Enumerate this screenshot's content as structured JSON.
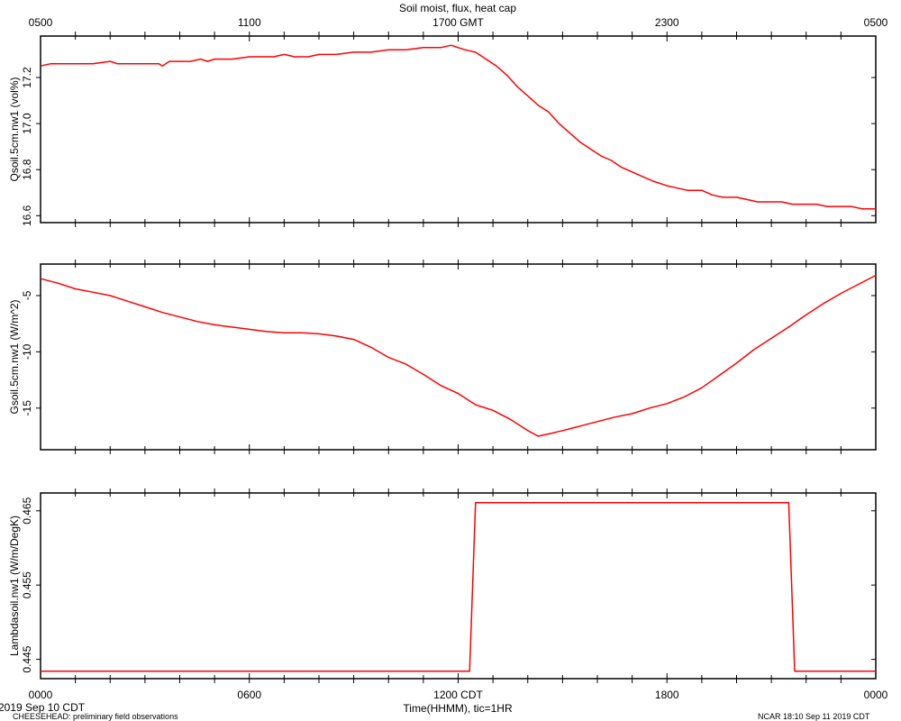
{
  "figure": {
    "title": "Soil moist, flux, heat cap",
    "top_axis_ticks": [
      "0500",
      "1100",
      "1700 GMT",
      "2300",
      "0500"
    ],
    "bottom_axis_ticks": [
      "0000",
      "0600",
      "1200 CDT",
      "1800",
      "0000"
    ],
    "xlabel": "Time(HHMM), tic=1HR",
    "start_date": "2019 Sep 10 CDT",
    "footer_left": "CHEESEHEAD: preliminary field observations",
    "footer_right": "NCAR 18:10 Sep 11 2019 CDT",
    "line_color": "#ff0000",
    "axis_color": "#000000"
  },
  "chart_data": [
    {
      "type": "line",
      "title": "",
      "ylabel": "Qsoil.5cm.nw1 (vol%)",
      "xlabel": "Time(HHMM), tic=1HR",
      "xlim": [
        0,
        24
      ],
      "ylim": [
        16.57,
        17.38
      ],
      "yticks": [
        16.6,
        16.8,
        17.0,
        17.2
      ],
      "ytick_labels": [
        "16.6",
        "16.8",
        "17.0",
        "17.2"
      ],
      "grid": false,
      "series": [
        {
          "x": [
            0,
            0.3,
            0.6,
            1,
            1.5,
            2,
            2.2,
            2.5,
            3,
            3.4,
            3.5,
            3.7,
            4,
            4.3,
            4.6,
            4.8,
            5,
            5.5,
            6,
            6.3,
            6.7,
            7,
            7.3,
            7.7,
            8,
            8.5,
            9,
            9.5,
            10,
            10.5,
            11,
            11.5,
            11.8,
            12,
            12.2,
            12.5,
            12.8,
            13.1,
            13.4,
            13.7,
            14,
            14.3,
            14.6,
            14.9,
            15.2,
            15.5,
            15.8,
            16.1,
            16.4,
            16.7,
            17,
            17.3,
            17.6,
            18,
            18.3,
            18.6,
            19,
            19.3,
            19.6,
            20,
            20.3,
            20.6,
            21,
            21.3,
            21.6,
            22,
            22.3,
            22.6,
            23,
            23.3,
            23.6,
            24
          ],
          "y": [
            17.25,
            17.26,
            17.26,
            17.26,
            17.26,
            17.27,
            17.26,
            17.26,
            17.26,
            17.26,
            17.25,
            17.27,
            17.27,
            17.27,
            17.28,
            17.27,
            17.28,
            17.28,
            17.29,
            17.29,
            17.29,
            17.3,
            17.29,
            17.29,
            17.3,
            17.3,
            17.31,
            17.31,
            17.32,
            17.32,
            17.33,
            17.33,
            17.34,
            17.33,
            17.32,
            17.31,
            17.28,
            17.25,
            17.21,
            17.16,
            17.12,
            17.08,
            17.05,
            17.0,
            16.96,
            16.92,
            16.89,
            16.86,
            16.84,
            16.81,
            16.79,
            16.77,
            16.75,
            16.73,
            16.72,
            16.71,
            16.71,
            16.69,
            16.68,
            16.68,
            16.67,
            16.66,
            16.66,
            16.66,
            16.65,
            16.65,
            16.65,
            16.64,
            16.64,
            16.64,
            16.63,
            16.63
          ]
        }
      ]
    },
    {
      "type": "line",
      "title": "",
      "ylabel": "Gsoil.5cm.nw1 (W/m^2)",
      "xlabel": "Time(HHMM), tic=1HR",
      "xlim": [
        0,
        24
      ],
      "ylim": [
        -18.7,
        -2.2
      ],
      "yticks": [
        -5,
        -10,
        -15
      ],
      "ytick_labels": [
        "-5",
        "-10",
        "-15"
      ],
      "grid": false,
      "series": [
        {
          "x": [
            0,
            0.5,
            1,
            1.5,
            2,
            2.5,
            3,
            3.5,
            4,
            4.5,
            5,
            5.5,
            6,
            6.5,
            7,
            7.5,
            8,
            8.5,
            9,
            9.5,
            10,
            10.5,
            11,
            11.5,
            12,
            12.5,
            13,
            13.5,
            14,
            14.3,
            14.6,
            15,
            15.5,
            16,
            16.5,
            17,
            17.5,
            18,
            18.5,
            19,
            19.5,
            20,
            20.5,
            21,
            21.5,
            22,
            22.5,
            23,
            23.5,
            24
          ],
          "y": [
            -3.5,
            -3.9,
            -4.4,
            -4.7,
            -5.0,
            -5.5,
            -6.0,
            -6.5,
            -6.9,
            -7.3,
            -7.6,
            -7.8,
            -8.0,
            -8.2,
            -8.3,
            -8.3,
            -8.4,
            -8.6,
            -8.9,
            -9.6,
            -10.5,
            -11.1,
            -12.0,
            -13.0,
            -13.7,
            -14.7,
            -15.2,
            -16.0,
            -17.0,
            -17.5,
            -17.3,
            -17.0,
            -16.6,
            -16.2,
            -15.8,
            -15.5,
            -15.0,
            -14.6,
            -14.0,
            -13.2,
            -12.1,
            -11.0,
            -9.8,
            -8.8,
            -7.8,
            -6.7,
            -5.7,
            -4.8,
            -4.0,
            -3.2
          ]
        }
      ]
    },
    {
      "type": "line",
      "title": "",
      "ylabel": "Lambdasoil.nw1 (W/m/DegK)",
      "xlabel": "Time(HHMM), tic=1HR",
      "xlim": [
        0,
        24
      ],
      "ylim": [
        0.4424,
        0.4674
      ],
      "yticks": [
        0.445,
        0.455,
        0.465
      ],
      "ytick_labels": [
        "0.445",
        "0.455",
        "0.465"
      ],
      "grid": false,
      "series": [
        {
          "x": [
            0,
            12.33,
            12.5,
            21.5,
            21.67,
            24
          ],
          "y": [
            0.4434,
            0.4434,
            0.4661,
            0.4661,
            0.4434,
            0.4434
          ]
        }
      ]
    }
  ]
}
